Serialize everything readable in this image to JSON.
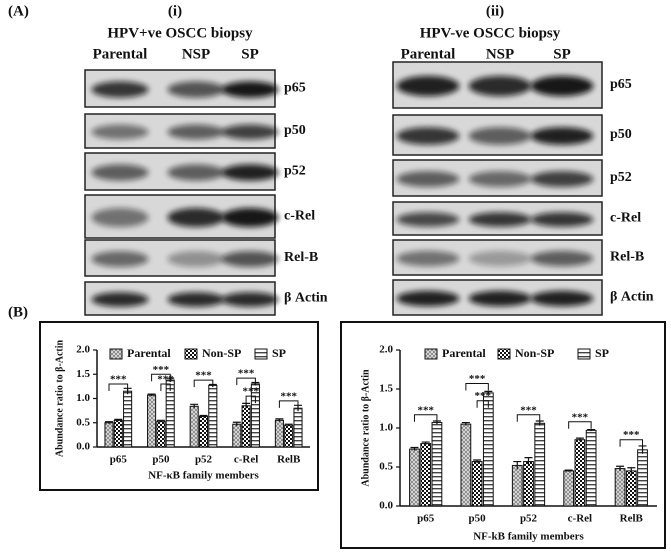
{
  "figure": {
    "panel_labels": [
      "(A)",
      "(B)"
    ],
    "blots": [
      {
        "label": "(i)",
        "title": "HPV+ve OSCC biopsy",
        "lanes": [
          "Parental",
          "NSP",
          "SP"
        ],
        "bands": [
          "p65",
          "p50",
          "p52",
          "c-Rel",
          "Rel-B",
          "β Actin"
        ]
      },
      {
        "label": "(ii)",
        "title": "HPV-ve OSCC biopsy",
        "lanes": [
          "Parental",
          "NSP",
          "SP"
        ],
        "bands": [
          "p65",
          "p50",
          "p52",
          "c-Rel",
          "Rel-B",
          "β Actin"
        ]
      }
    ]
  },
  "chart_data": [
    {
      "type": "bar",
      "ylabel": "Abundance ratio to β-Actin",
      "xlabel": "NF-κB family members",
      "categories": [
        "p65",
        "p50",
        "p52",
        "c-Rel",
        "RelB"
      ],
      "series": [
        {
          "name": "Parental",
          "color": "#5a5a5a",
          "pattern": "crosshatch",
          "values": [
            0.5,
            1.07,
            0.84,
            0.47,
            0.55
          ],
          "errors": [
            0.02,
            0.02,
            0.04,
            0.04,
            0.03
          ]
        },
        {
          "name": "Non-SP",
          "color": "#111111",
          "pattern": "checker",
          "values": [
            0.55,
            0.53,
            0.63,
            0.85,
            0.45
          ],
          "errors": [
            0.02,
            0.02,
            0.02,
            0.05,
            0.02
          ]
        },
        {
          "name": "SP",
          "color": "#444444",
          "pattern": "horizontal",
          "values": [
            1.15,
            1.38,
            1.27,
            1.3,
            0.8
          ],
          "errors": [
            0.06,
            0.04,
            0.02,
            0.03,
            0.06
          ]
        }
      ],
      "ylim": [
        0,
        2.0
      ],
      "yticks": [
        {
          "value": 0,
          "label": "0.0"
        },
        {
          "value": 0.5,
          "label": "0.5"
        },
        {
          "value": 1,
          "label": "1.0"
        },
        {
          "value": 1.5,
          "label": "1.5"
        },
        {
          "value": 2,
          "label": "2.0"
        }
      ],
      "annotations": [
        "***",
        "***",
        "***",
        "***",
        "***",
        "***",
        "***"
      ]
    },
    {
      "type": "bar",
      "ylabel": "Abundance ratio to β-Actin",
      "xlabel": "NF-kB family members",
      "categories": [
        "p65",
        "p50",
        "p52",
        "c-Rel",
        "RelB"
      ],
      "series": [
        {
          "name": "Parental",
          "color": "#5a5a5a",
          "pattern": "crosshatch",
          "values": [
            0.73,
            1.05,
            0.52,
            0.45,
            0.48
          ],
          "errors": [
            0.02,
            0.02,
            0.05,
            0.01,
            0.03
          ]
        },
        {
          "name": "Non-SP",
          "color": "#111111",
          "pattern": "checker",
          "values": [
            0.8,
            0.57,
            0.57,
            0.85,
            0.45
          ],
          "errors": [
            0.02,
            0.02,
            0.05,
            0.02,
            0.04
          ]
        },
        {
          "name": "SP",
          "color": "#444444",
          "pattern": "horizontal",
          "values": [
            1.07,
            1.45,
            1.06,
            0.97,
            0.72
          ],
          "errors": [
            0.02,
            0.02,
            0.03,
            0.01,
            0.05
          ]
        }
      ],
      "ylim": [
        0,
        2.0
      ],
      "yticks": [
        {
          "value": 0,
          "label": "0.0"
        },
        {
          "value": 0.5,
          "label": "0.5"
        },
        {
          "value": 1,
          "label": "1.0"
        },
        {
          "value": 1.5,
          "label": "1.5"
        },
        {
          "value": 2,
          "label": "2.0"
        }
      ],
      "annotations": [
        "***",
        "***",
        "***",
        "***",
        "***",
        "***"
      ]
    }
  ]
}
